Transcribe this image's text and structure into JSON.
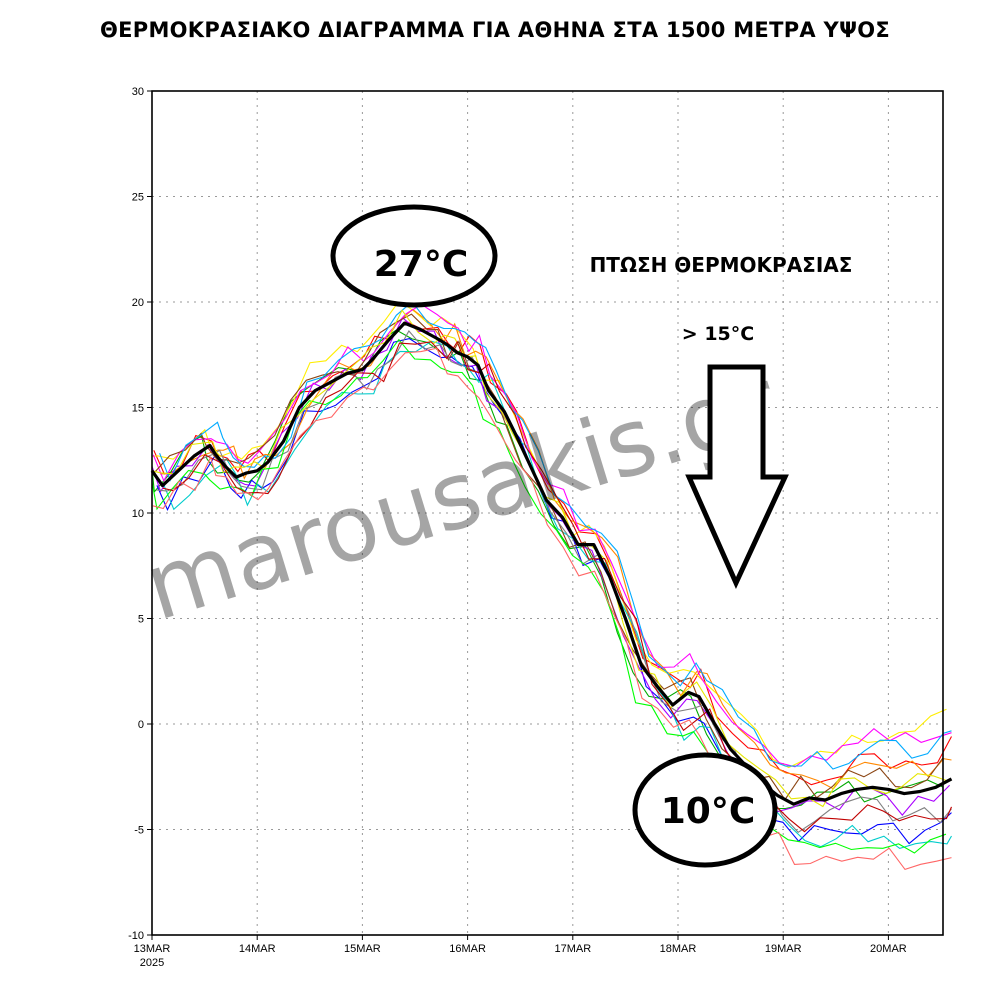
{
  "title": "ΘΕΡΜΟΚΡΑΣΙΑΚΟ ΔΙΑΓΡΑΜΜΑ ΓΙΑ ΑΘΗΝΑ ΣΤΑ 1500 ΜΕΤΡΑ ΥΨΟΣ",
  "watermark": "marousakis.gr",
  "annotations": {
    "peak_label": "27°C",
    "low_label": "10°C",
    "drop_title": "ΠΤΩΣΗ ΘΕΡΜΟΚΡΑΣΙΑΣ",
    "drop_amount": "> 15°C"
  },
  "chart_data": {
    "type": "line",
    "xlabel": "",
    "ylabel": "",
    "ylim": [
      -10,
      30
    ],
    "xlim": [
      0,
      7.6
    ],
    "yticks": [
      30,
      25,
      20,
      15,
      10,
      5,
      0,
      -5,
      -10
    ],
    "ytick_labels": [
      "30",
      "25",
      "20",
      "15",
      "10",
      "5",
      "0",
      "-5",
      "-10"
    ],
    "xticks": [
      0,
      1,
      2,
      3,
      4,
      5,
      6,
      7
    ],
    "xtick_labels": [
      "13MAR",
      "14MAR",
      "15MAR",
      "16MAR",
      "17MAR",
      "18MAR",
      "19MAR",
      "20MAR"
    ],
    "xtick_sublabel": "2025",
    "grid": true,
    "ensemble_colors": [
      "#ff0000",
      "#00aa00",
      "#0000ff",
      "#ffee00",
      "#ff8800",
      "#aa00ff",
      "#00cccc",
      "#ff00ff",
      "#8b4513",
      "#808080",
      "#00ff00",
      "#00aaff",
      "#e6e600",
      "#c00000",
      "#ff6666"
    ],
    "mean_series": {
      "name": "",
      "color": "#000000",
      "x": [
        0,
        0.1,
        0.25,
        0.4,
        0.55,
        0.6,
        0.7,
        0.8,
        0.9,
        1.0,
        1.1,
        1.25,
        1.4,
        1.55,
        1.7,
        1.85,
        2.0,
        2.1,
        2.25,
        2.4,
        2.55,
        2.7,
        2.8,
        2.9,
        3.0,
        3.1,
        3.2,
        3.35,
        3.45,
        3.6,
        3.75,
        3.9,
        4.05,
        4.2,
        4.35,
        4.5,
        4.65,
        4.8,
        4.95,
        5.1,
        5.2,
        5.35,
        5.5,
        5.65,
        5.8,
        5.95,
        6.1,
        6.25,
        6.4,
        6.55,
        6.7,
        6.85,
        7.0,
        7.15,
        7.3,
        7.45,
        7.6
      ],
      "y": [
        12.0,
        11.3,
        12.0,
        12.7,
        13.2,
        12.8,
        12.2,
        11.7,
        11.9,
        12.0,
        12.4,
        13.4,
        15.0,
        15.8,
        16.2,
        16.6,
        16.8,
        17.3,
        18.2,
        19.0,
        18.7,
        18.3,
        18.0,
        17.6,
        17.4,
        17.0,
        15.8,
        14.8,
        13.8,
        12.2,
        10.6,
        9.8,
        8.5,
        8.5,
        7.0,
        5.0,
        2.8,
        1.8,
        0.9,
        1.5,
        1.3,
        0.0,
        -1.2,
        -2.0,
        -2.8,
        -3.4,
        -3.8,
        -3.5,
        -3.6,
        -3.3,
        -3.1,
        -3.0,
        -3.1,
        -3.3,
        -3.2,
        -3.0,
        -2.6
      ]
    }
  }
}
